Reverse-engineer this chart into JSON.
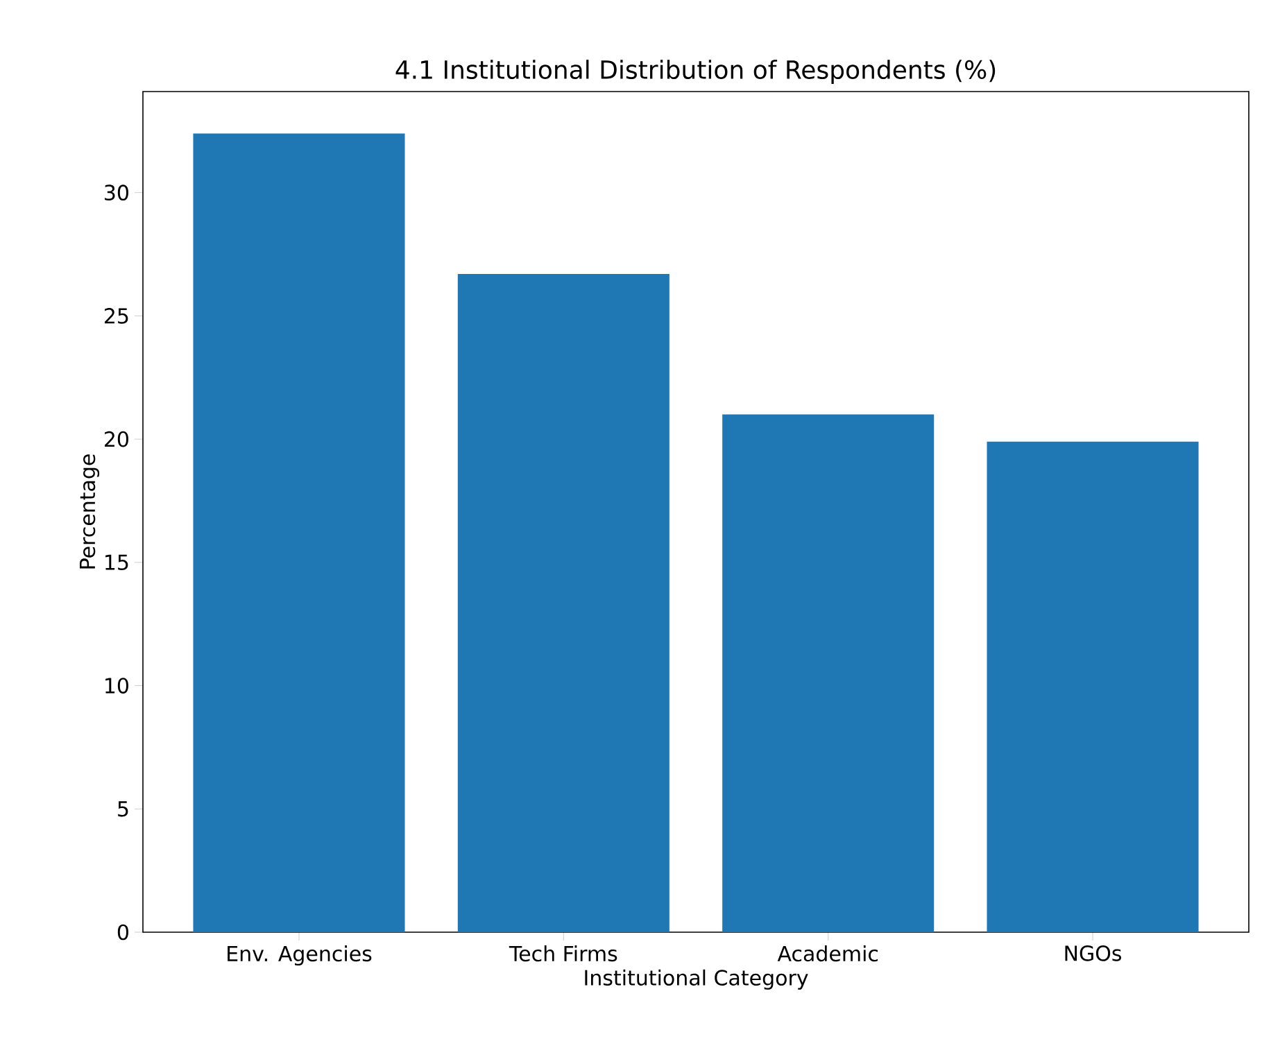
{
  "chart_data": {
    "type": "bar",
    "title": "4.1 Institutional Distribution of Respondents (%)",
    "xlabel": "Institutional Category",
    "ylabel": "Percentage",
    "categories": [
      "Env. Agencies",
      "Tech Firms",
      "Academic",
      "NGOs"
    ],
    "values": [
      32.4,
      26.7,
      21.0,
      19.9
    ],
    "color": "#1f77b4",
    "ylim": [
      0,
      34.1
    ],
    "yticks": [
      0,
      5,
      10,
      15,
      20,
      25,
      30
    ],
    "grid": false
  }
}
